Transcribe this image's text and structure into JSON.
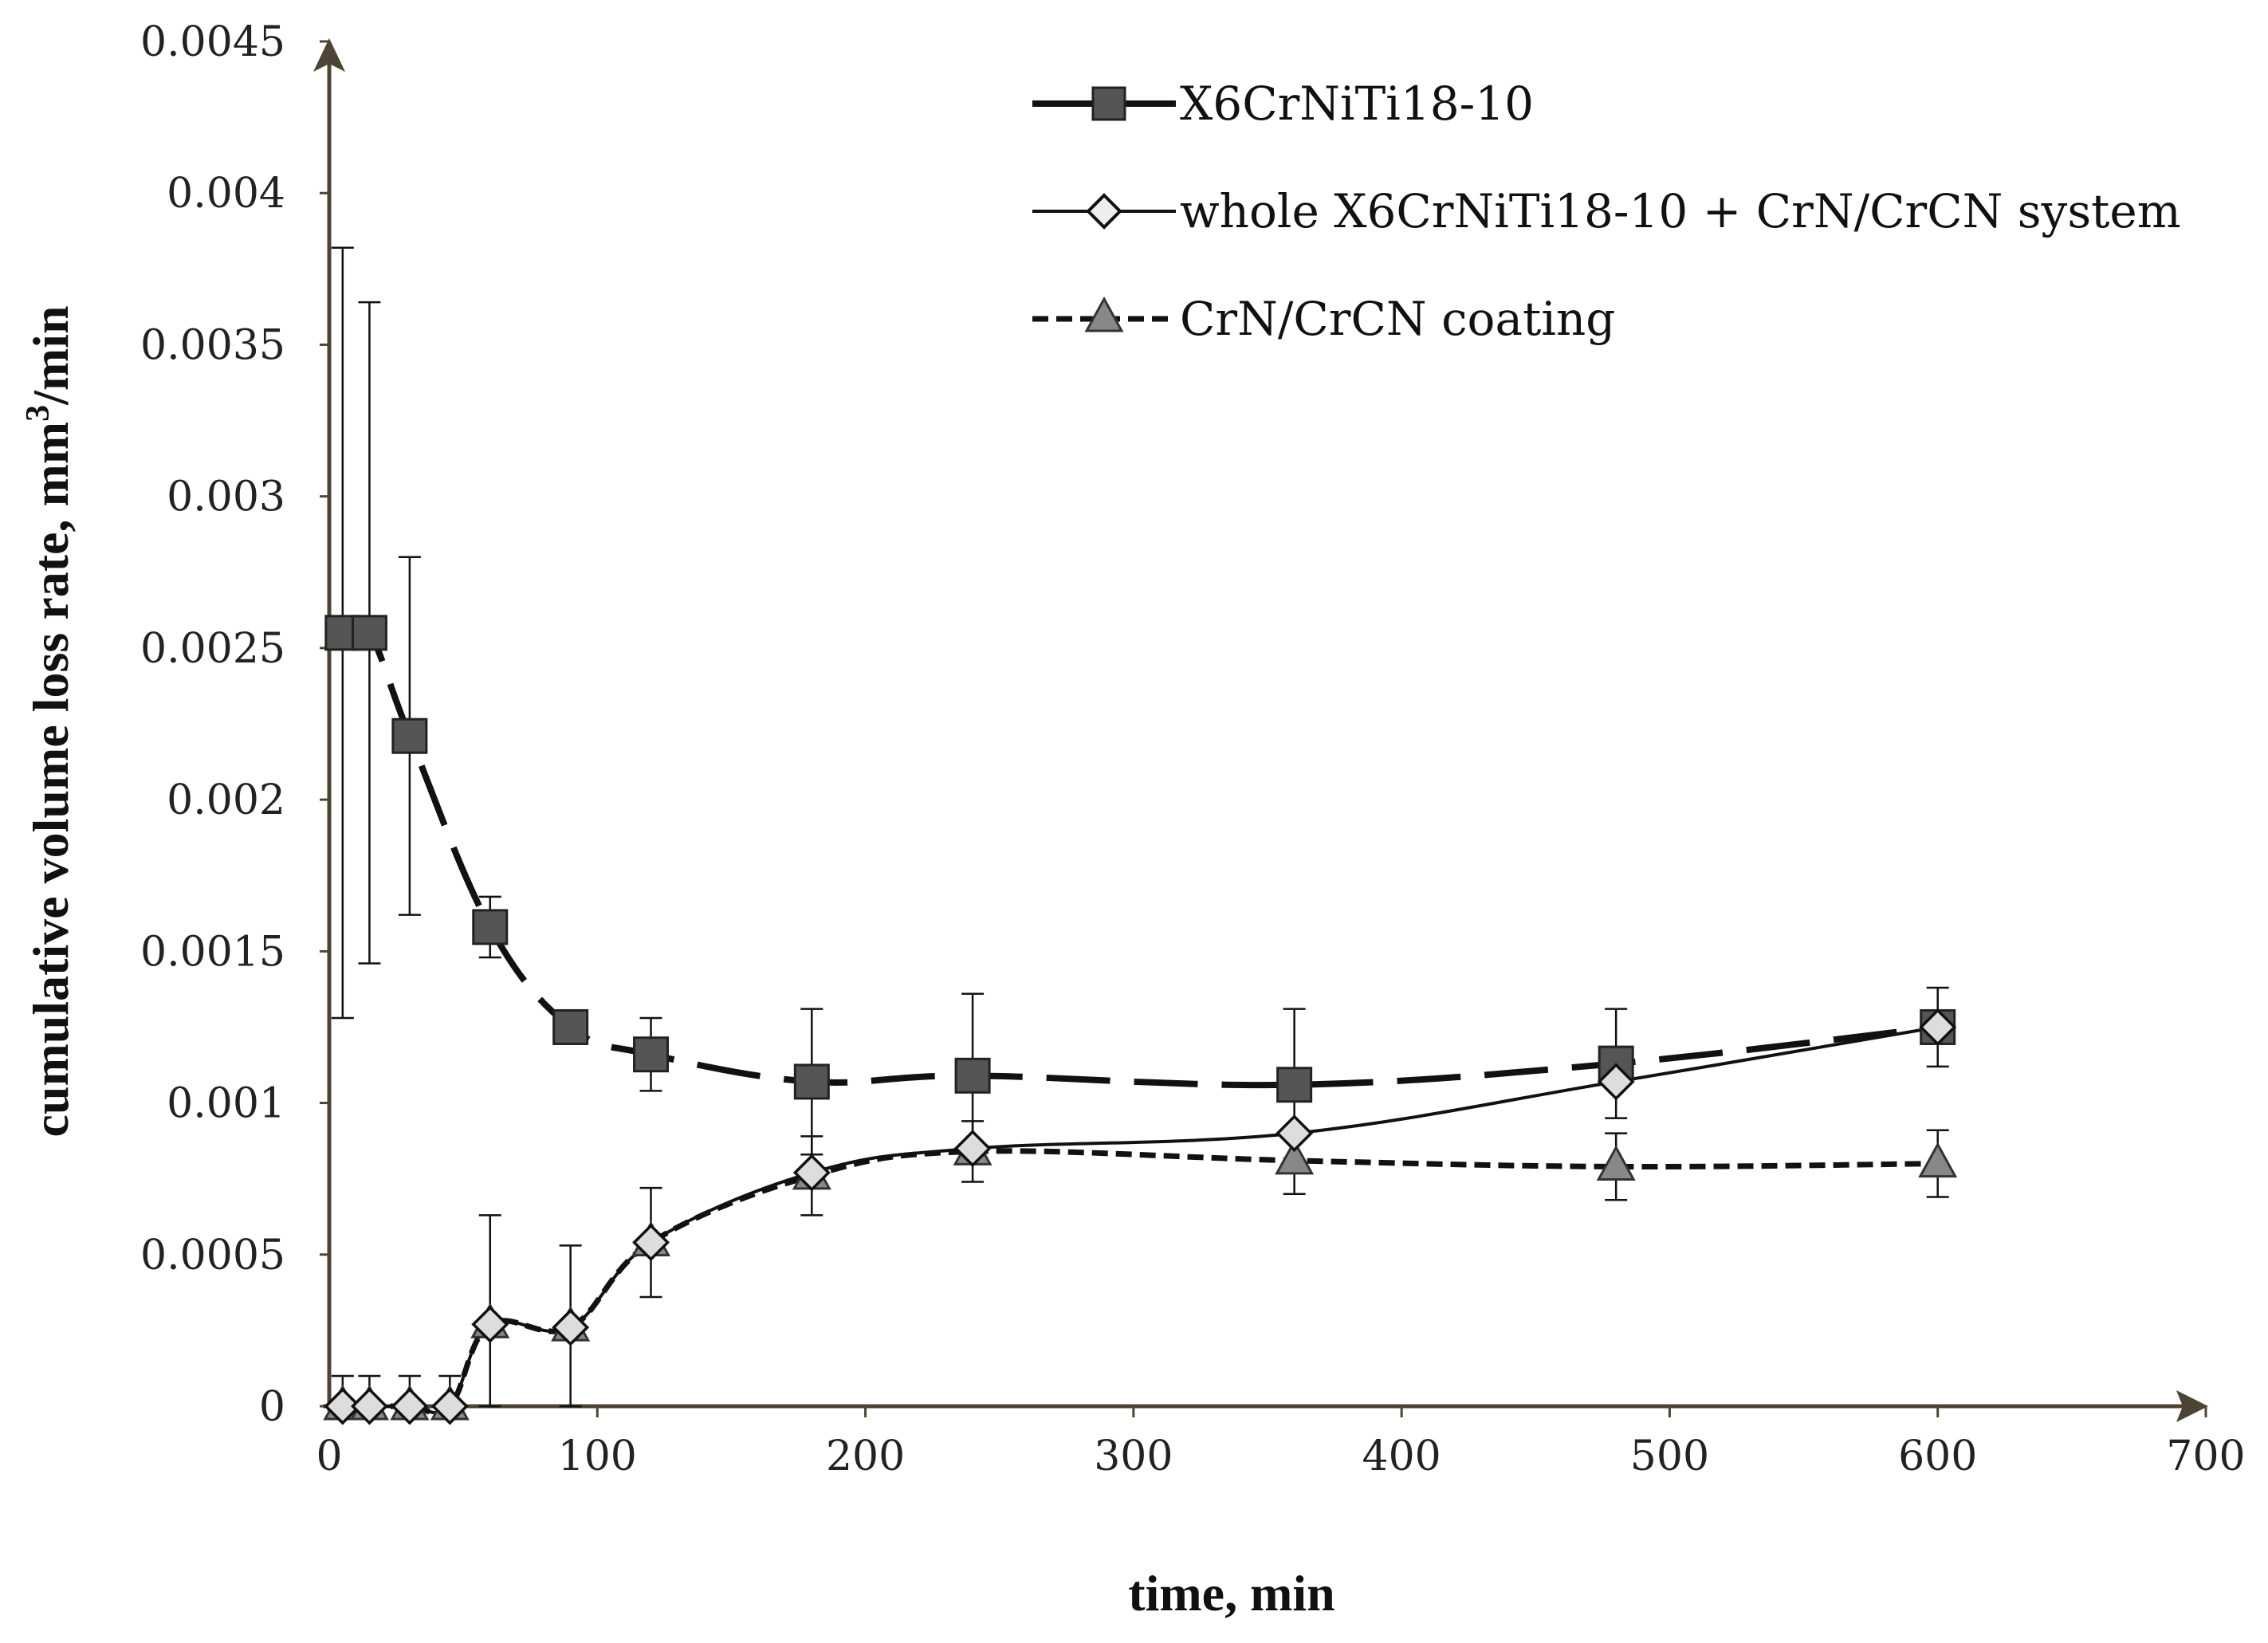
{
  "chart_data": {
    "type": "line",
    "title": "",
    "xlabel": "time, min",
    "ylabel_main": "cumulative volume loss rate, mm",
    "ylabel_sup": "3",
    "ylabel_tail": "/min",
    "xlim": [
      0,
      700
    ],
    "ylim": [
      0,
      0.0045
    ],
    "x_ticks": [
      0,
      100,
      200,
      300,
      400,
      500,
      600,
      700
    ],
    "y_ticks": [
      0,
      0.0005,
      0.001,
      0.0015,
      0.002,
      0.0025,
      0.003,
      0.0035,
      0.004,
      0.0045
    ],
    "x_tick_labels": [
      "0",
      "100",
      "200",
      "300",
      "400",
      "500",
      "600",
      "700"
    ],
    "y_tick_labels": [
      "0",
      "0.0005",
      "0.001",
      "0.0015",
      "0.002",
      "0.0025",
      "0.003",
      "0.0035",
      "0.004",
      "0.0045"
    ],
    "legend_position": "top-right",
    "series": [
      {
        "name": "X6CrNiTi18-10",
        "marker": "square",
        "line": "long-dash",
        "color": "#555555",
        "x": [
          5,
          15,
          30,
          60,
          90,
          120,
          180,
          240,
          360,
          480,
          600
        ],
        "y": [
          0.00255,
          0.00255,
          0.00221,
          0.00158,
          0.00125,
          0.00116,
          0.00107,
          0.00109,
          0.00106,
          0.00113,
          0.00125
        ],
        "err": [
          0.00127,
          0.00109,
          0.00059,
          0.0001,
          1e-05,
          0.00012,
          0.00024,
          0.00027,
          0.00025,
          0.00018,
          0.00013
        ]
      },
      {
        "name": "whole X6CrNiTi18-10 + CrN/CrCN system",
        "marker": "diamond",
        "line": "solid",
        "color": "#dddddd",
        "x": [
          5,
          15,
          30,
          45,
          60,
          90,
          120,
          180,
          240,
          360,
          480,
          600
        ],
        "y": [
          0,
          0,
          0,
          0,
          0.00027,
          0.00026,
          0.00054,
          0.00077,
          0.00085,
          0.0009,
          0.00107,
          0.00125
        ],
        "err": [
          0,
          0,
          0,
          0,
          0,
          0,
          0,
          0,
          0,
          0,
          0,
          0
        ]
      },
      {
        "name": "CrN/CrCN coating",
        "marker": "triangle",
        "line": "short-dash",
        "color": "#888888",
        "x": [
          5,
          15,
          30,
          45,
          60,
          90,
          120,
          180,
          240,
          360,
          480,
          600
        ],
        "y": [
          0,
          0,
          0,
          0,
          0.00027,
          0.00026,
          0.00054,
          0.00076,
          0.00084,
          0.00081,
          0.00079,
          0.0008
        ],
        "err": [
          0.0001,
          0.0001,
          0.0001,
          0.0001,
          0.00036,
          0.00027,
          0.00018,
          0.00013,
          0.0001,
          0.00011,
          0.00011,
          0.00011
        ]
      }
    ]
  }
}
